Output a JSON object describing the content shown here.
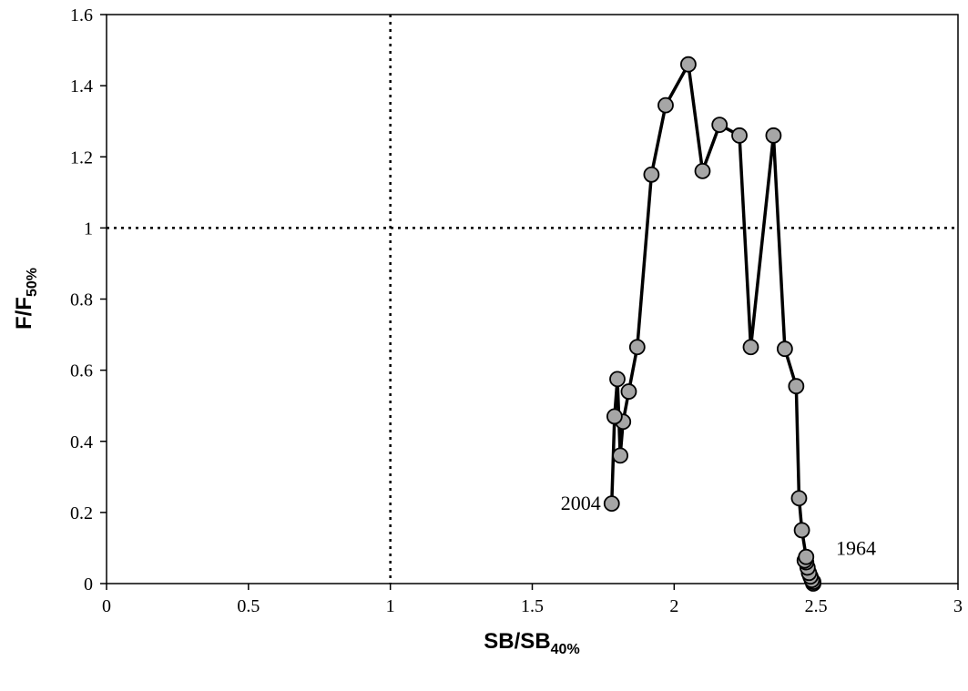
{
  "chart_data": {
    "type": "scatter",
    "title": "",
    "xlabel_main": "SB/SB",
    "xlabel_sub": "40%",
    "ylabel_main": "F/F",
    "ylabel_sub": "50%",
    "xlim": [
      0,
      3
    ],
    "ylim": [
      0,
      1.6
    ],
    "xticks": [
      0,
      0.5,
      1,
      1.5,
      2,
      2.5,
      3
    ],
    "xtick_labels": [
      "0",
      "0.5",
      "1",
      "1.5",
      "2",
      "2.5",
      "3"
    ],
    "yticks": [
      0,
      0.2,
      0.4,
      0.6,
      0.8,
      1,
      1.2,
      1.4,
      1.6
    ],
    "ytick_labels": [
      "0",
      "0.2",
      "0.4",
      "0.6",
      "0.8",
      "1",
      "1.2",
      "1.4",
      "1.6"
    ],
    "grid": false,
    "reference_lines": [
      {
        "orientation": "vertical",
        "value": 1,
        "style": "dotted"
      },
      {
        "orientation": "horizontal",
        "value": 1,
        "style": "dotted"
      }
    ],
    "series": [
      {
        "connected": true,
        "marker": "circle",
        "marker_fill": "#a6a6a6",
        "line_color": "#000000",
        "points": [
          [
            2.49,
            0.0
          ],
          [
            2.49,
            0.005
          ],
          [
            2.485,
            0.01
          ],
          [
            2.48,
            0.02
          ],
          [
            2.475,
            0.03
          ],
          [
            2.47,
            0.045
          ],
          [
            2.465,
            0.06
          ],
          [
            2.46,
            0.065
          ],
          [
            2.465,
            0.075
          ],
          [
            2.45,
            0.15
          ],
          [
            2.44,
            0.24
          ],
          [
            2.43,
            0.555
          ],
          [
            2.39,
            0.66
          ],
          [
            2.35,
            1.26
          ],
          [
            2.27,
            0.665
          ],
          [
            2.23,
            1.26
          ],
          [
            2.16,
            1.29
          ],
          [
            2.1,
            1.16
          ],
          [
            2.05,
            1.46
          ],
          [
            1.97,
            1.345
          ],
          [
            1.92,
            1.15
          ],
          [
            1.87,
            0.665
          ],
          [
            1.84,
            0.54
          ],
          [
            1.82,
            0.455
          ],
          [
            1.81,
            0.36
          ],
          [
            1.8,
            0.575
          ],
          [
            1.79,
            0.47
          ],
          [
            1.78,
            0.225
          ]
        ]
      }
    ],
    "annotations": [
      {
        "text": "1964",
        "x": 2.49,
        "y": 0.05,
        "position": "right"
      },
      {
        "text": "2004",
        "x": 1.78,
        "y": 0.225,
        "position": "left"
      }
    ]
  }
}
